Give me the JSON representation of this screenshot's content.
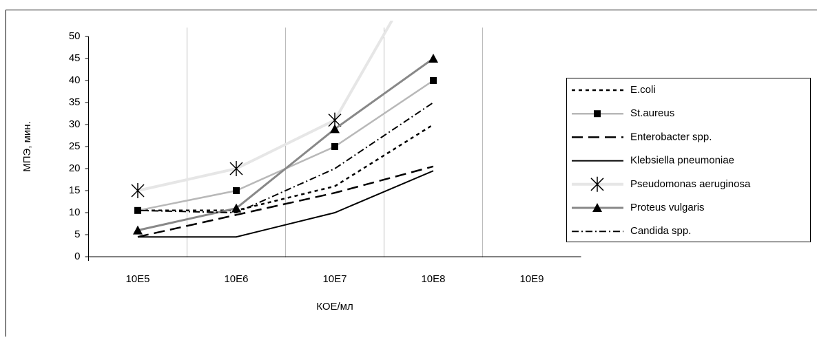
{
  "chart_data": {
    "type": "line",
    "x_label": "КОЕ/мл",
    "y_label": "МПЭ, мин.",
    "categories": [
      "10E5",
      "10E6",
      "10E7",
      "10E8",
      "10E9"
    ],
    "ylim": [
      0,
      50
    ],
    "yticks": [
      0,
      5,
      10,
      15,
      20,
      25,
      30,
      35,
      40,
      45,
      50
    ],
    "series": [
      {
        "name": "E.coli",
        "color": "#000000",
        "values": [
          10.5,
          10.5,
          16,
          30,
          null
        ]
      },
      {
        "name": "St.aureus",
        "color": "#b8b8b8",
        "values": [
          10.5,
          15,
          25,
          40,
          null
        ]
      },
      {
        "name": "Enterobacter spp.",
        "color": "#000000",
        "values": [
          4.5,
          9.5,
          14.5,
          20.5,
          null
        ]
      },
      {
        "name": "Klebsiella pneumoniae",
        "color": "#000000",
        "values": [
          4.5,
          4.5,
          10,
          19.5,
          null
        ]
      },
      {
        "name": "Pseudomonas aeruginosa",
        "color": "#e6e6e6",
        "values": [
          15,
          20,
          31,
          70,
          null
        ]
      },
      {
        "name": "Proteus vulgaris",
        "color": "#888888",
        "values": [
          6,
          11,
          29,
          45,
          null
        ]
      },
      {
        "name": "Candida spp.",
        "color": "#000000",
        "values": [
          10.5,
          10,
          20,
          35,
          null
        ]
      }
    ]
  }
}
